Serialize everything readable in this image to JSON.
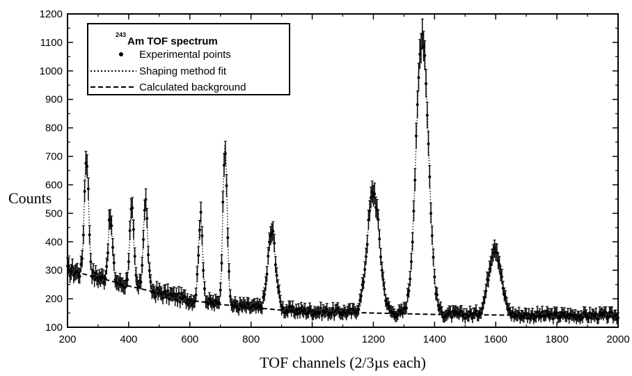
{
  "chart_data": {
    "type": "scatter",
    "title": "",
    "xlabel": "TOF channels (2/3µs each)",
    "ylabel": "Counts",
    "xlim": [
      200,
      2000
    ],
    "ylim": [
      100,
      1200
    ],
    "x_ticks": [
      200,
      400,
      600,
      800,
      1000,
      1200,
      1400,
      1600,
      1800,
      2000
    ],
    "y_ticks": [
      100,
      200,
      300,
      400,
      500,
      600,
      700,
      800,
      900,
      1000,
      1100,
      1200
    ],
    "grid": false,
    "legend": {
      "placement": "top-left",
      "title_superscript": "243",
      "title": "Am TOF spectrum",
      "entries": [
        {
          "label": "Experimental points",
          "style": "dots"
        },
        {
          "label": "Shaping method fit",
          "style": "dotted-line"
        },
        {
          "label": "Calculated background",
          "style": "dashed-line"
        }
      ]
    },
    "peaks": [
      {
        "x": 262,
        "height": 720
      },
      {
        "x": 340,
        "height": 500
      },
      {
        "x": 410,
        "height": 525
      },
      {
        "x": 455,
        "height": 560
      },
      {
        "x": 635,
        "height": 500
      },
      {
        "x": 715,
        "height": 760
      },
      {
        "x": 868,
        "height": 450
      },
      {
        "x": 1200,
        "height": 590
      },
      {
        "x": 1360,
        "height": 1150
      },
      {
        "x": 1597,
        "height": 400
      }
    ],
    "background": {
      "x": [
        200,
        300,
        400,
        500,
        600,
        700,
        800,
        900,
        1000,
        1200,
        1400,
        1600,
        1800,
        2000
      ],
      "y": [
        300,
        275,
        245,
        220,
        195,
        180,
        170,
        160,
        155,
        150,
        145,
        143,
        141,
        140
      ]
    }
  }
}
